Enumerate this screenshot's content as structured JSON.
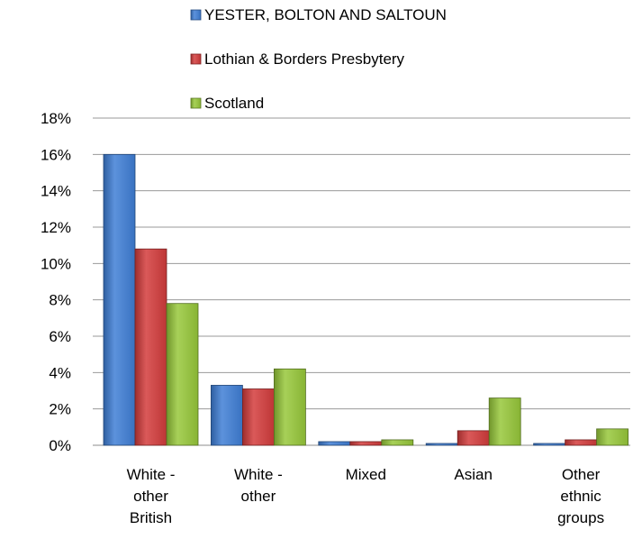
{
  "chart_data": {
    "type": "bar",
    "categories": [
      [
        "White -",
        "other",
        "British"
      ],
      [
        "White -",
        "other"
      ],
      [
        "Mixed"
      ],
      [
        "Asian"
      ],
      [
        "Other",
        "ethnic",
        "groups"
      ]
    ],
    "series": [
      {
        "name": "YESTER, BOLTON AND SALTOUN",
        "values": [
          16.0,
          3.3,
          0.2,
          0.1,
          0.1
        ],
        "color": "#3f7fd6"
      },
      {
        "name": "Lothian & Borders Presbytery",
        "values": [
          10.8,
          3.1,
          0.2,
          0.8,
          0.3
        ],
        "color": "#d33c3c"
      },
      {
        "name": "Scotland",
        "values": [
          7.8,
          4.2,
          0.3,
          2.6,
          0.9
        ],
        "color": "#97c83a"
      }
    ],
    "ylim": [
      0,
      18
    ],
    "yticks": [
      "0%",
      "2%",
      "4%",
      "6%",
      "8%",
      "10%",
      "12%",
      "14%",
      "16%",
      "18%"
    ],
    "grid": true,
    "legend_position": "top"
  }
}
